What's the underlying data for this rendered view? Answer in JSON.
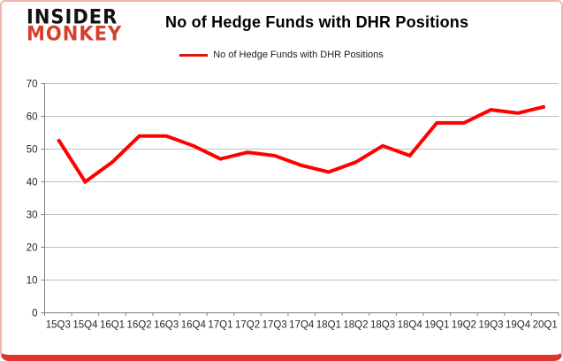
{
  "logo": {
    "line1": "INSIDER",
    "line2": "MONKEY"
  },
  "header": {
    "title": "No of Hedge Funds with DHR Positions"
  },
  "legend": {
    "label": "No of Hedge Funds with DHR Positions",
    "line_color": "#da1408"
  },
  "chart_data": {
    "type": "line",
    "title": "No of Hedge Funds with DHR Positions",
    "categories": [
      "15Q3",
      "15Q4",
      "16Q1",
      "16Q2",
      "16Q3",
      "16Q4",
      "17Q1",
      "17Q2",
      "17Q3",
      "17Q4",
      "18Q1",
      "18Q2",
      "18Q3",
      "18Q4",
      "19Q1",
      "19Q2",
      "19Q3",
      "19Q4",
      "20Q1"
    ],
    "series": [
      {
        "name": "No of Hedge Funds with DHR Positions",
        "color": "#ff0000",
        "values": [
          53,
          40,
          46,
          54,
          54,
          51,
          47,
          49,
          48,
          45,
          43,
          46,
          51,
          48,
          58,
          58,
          62,
          61,
          63
        ]
      }
    ],
    "xlabel": "",
    "ylabel": "",
    "ylim": [
      0,
      70
    ],
    "ytick_step": 10,
    "yticks": [
      0,
      10,
      20,
      30,
      40,
      50,
      60,
      70
    ],
    "grid": "horizontal",
    "legend_position": "top",
    "colors": {
      "gridline": "#bfbfbf",
      "axis": "#808080",
      "tick_label": "#262626"
    }
  }
}
